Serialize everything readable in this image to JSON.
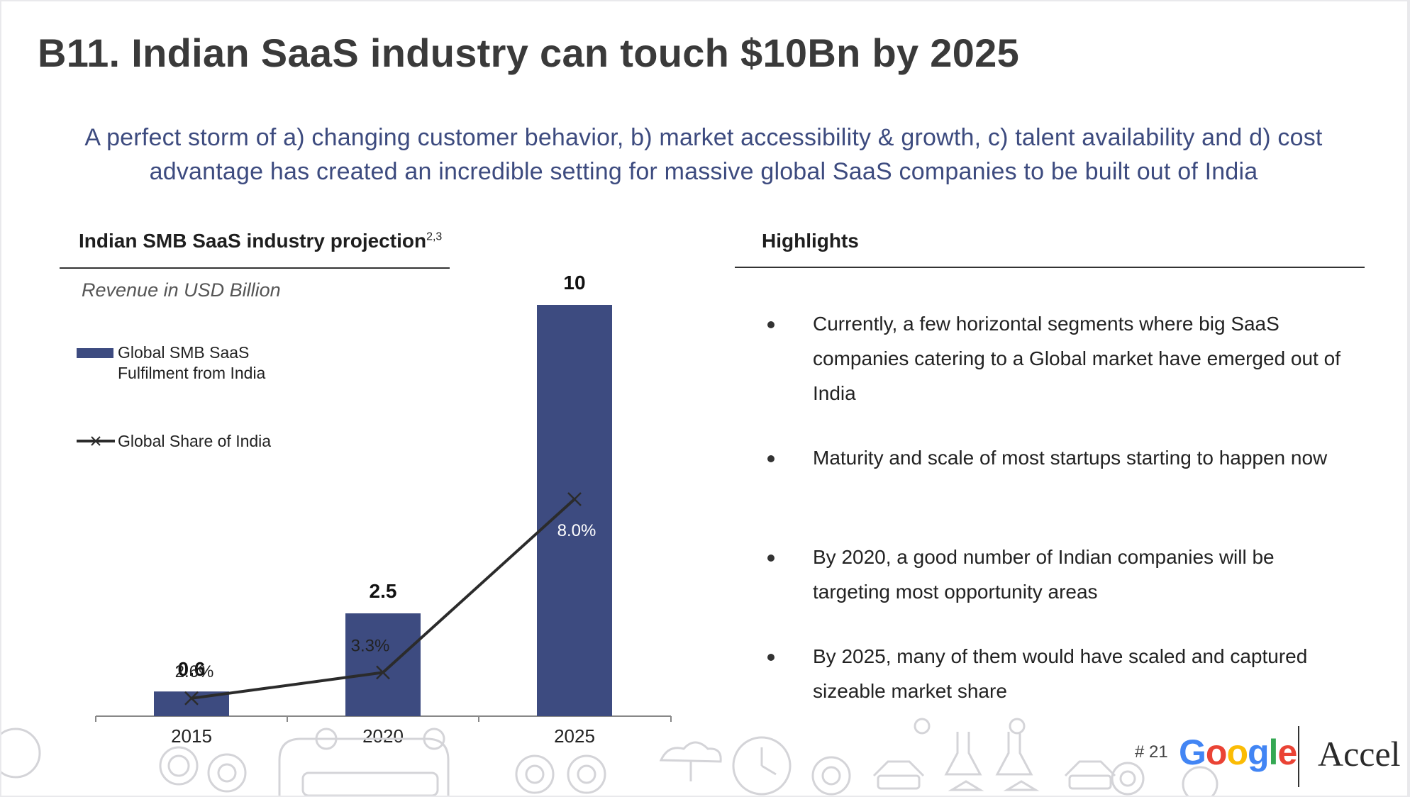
{
  "title": "B11. Indian SaaS industry can touch $10Bn by 2025",
  "subtitle": "A perfect storm of a) changing customer behavior, b) market accessibility & growth, c) talent availability and d) cost advantage has created an incredible setting for massive global SaaS companies to be built out of India",
  "chart_panel": {
    "title": "Indian SMB SaaS industry projection",
    "title_superscript": "2,3",
    "unit_label": "Revenue in USD Billion",
    "legend": [
      {
        "label": "Global SMB SaaS Fulfilment from India",
        "icon": "bar-swatch"
      },
      {
        "label": "Global Share of India",
        "icon": "line-x-marker"
      }
    ]
  },
  "chart_data": {
    "type": "bar",
    "categories": [
      "2015",
      "2020",
      "2025"
    ],
    "series": [
      {
        "name": "Global SMB SaaS Fulfilment from India",
        "type": "bar",
        "values": [
          0.6,
          2.5,
          10
        ],
        "value_labels": [
          "0.6",
          "2.5",
          "10"
        ],
        "color": "#3d4b80"
      },
      {
        "name": "Global Share of India",
        "type": "line",
        "values": [
          2.6,
          3.3,
          8.0
        ],
        "value_labels": [
          "2.6%",
          "3.3%",
          "8.0%"
        ],
        "color": "#2b2b2b"
      }
    ],
    "ylabel": "Revenue in USD Billion",
    "ylim": [
      0,
      10
    ],
    "grid": false,
    "legend_position": "left"
  },
  "highlights": {
    "title": "Highlights",
    "items": [
      "Currently, a few horizontal segments where big SaaS companies catering to a Global market have emerged out of India",
      "Maturity and scale of most startups starting to happen now",
      "By 2020, a good number of Indian companies will be targeting most opportunity areas",
      "By 2025, many of them would have scaled and captured sizeable market share"
    ]
  },
  "footer": {
    "page_number": "# 21",
    "google_letters": [
      "G",
      "o",
      "o",
      "g",
      "l",
      "e"
    ],
    "google_colors": [
      "#4285F4",
      "#EA4335",
      "#FBBC05",
      "#4285F4",
      "#34A853",
      "#EA4335"
    ],
    "accel_logo": "Accel"
  },
  "colors": {
    "accent": "#3d4b7f",
    "bar": "#3d4b80",
    "line": "#2b2b2b"
  }
}
